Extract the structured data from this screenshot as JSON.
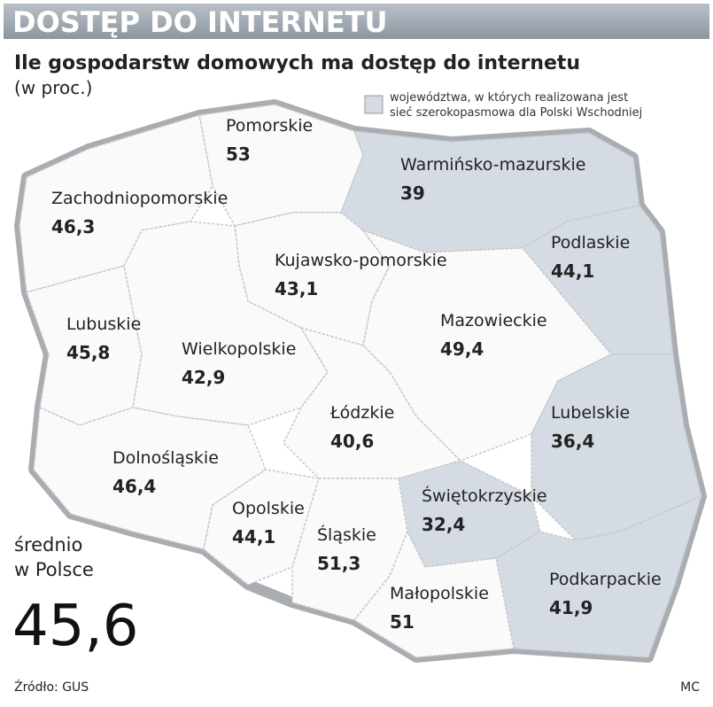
{
  "header": {
    "title": "DOSTĘP DO INTERNETU",
    "subtitle": "Ile gospodarstw domowych ma dostęp do internetu",
    "unit": "(w proc.)"
  },
  "legend": {
    "text_line1": "województwa, w których realizowana jest",
    "text_line2": "sieć szerokopasmowa dla Polski Wschodniej",
    "color": "#d5dbe2"
  },
  "regions": [
    {
      "name": "Pomorskie",
      "value": "53",
      "eastern": false
    },
    {
      "name": "Zachodniopomorskie",
      "value": "46,3",
      "eastern": false
    },
    {
      "name": "Warmińsko-mazurskie",
      "value": "39",
      "eastern": true
    },
    {
      "name": "Podlaskie",
      "value": "44,1",
      "eastern": true
    },
    {
      "name": "Kujawsko-pomorskie",
      "value": "43,1",
      "eastern": false
    },
    {
      "name": "Lubuskie",
      "value": "45,8",
      "eastern": false
    },
    {
      "name": "Wielkopolskie",
      "value": "42,9",
      "eastern": false
    },
    {
      "name": "Mazowieckie",
      "value": "49,4",
      "eastern": false
    },
    {
      "name": "Łódzkie",
      "value": "40,6",
      "eastern": false
    },
    {
      "name": "Lubelskie",
      "value": "36,4",
      "eastern": true
    },
    {
      "name": "Dolnośląskie",
      "value": "46,4",
      "eastern": false
    },
    {
      "name": "Świętokrzyskie",
      "value": "32,4",
      "eastern": true
    },
    {
      "name": "Opolskie",
      "value": "44,1",
      "eastern": false
    },
    {
      "name": "Śląskie",
      "value": "51,3",
      "eastern": false
    },
    {
      "name": "Podkarpackie",
      "value": "41,9",
      "eastern": true
    },
    {
      "name": "Małopolskie",
      "value": "51",
      "eastern": false
    }
  ],
  "average": {
    "label_line1": "średnio",
    "label_line2": "w Polsce",
    "value": "45,6"
  },
  "footer": {
    "source": "Źródło: GUS",
    "author": "MC"
  }
}
